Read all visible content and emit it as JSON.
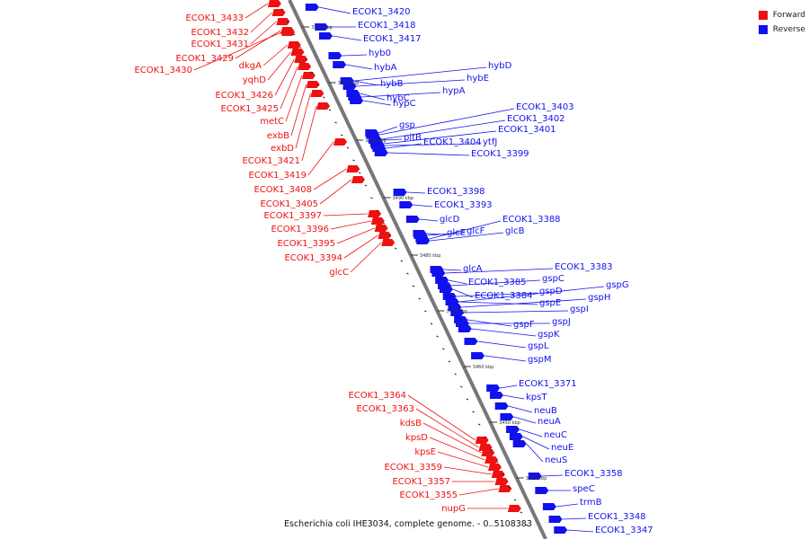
{
  "legend": {
    "forward_label": "Forward",
    "reverse_label": "Reverse",
    "forward_color": "#ee1111",
    "reverse_color": "#1111ee"
  },
  "caption": "Escherichia coli IHE3034, complete genome. - 0..5108383",
  "axis_ticks": [
    "3520 kbp",
    "3510 kbp",
    "3500 kbp",
    "3490 kbp",
    "3480 kbp",
    "3470 kbp",
    "3460 kbp",
    "3450 kbp",
    "3440 kbp"
  ],
  "reverse_genes": [
    "ECOK1_3420",
    "ECOK1_3418",
    "ECOK1_3417",
    "hyb0",
    "hybA",
    "hybB",
    "hybC",
    "hypC",
    "hypA",
    "hybE",
    "hybD",
    "gsp",
    "pitB",
    "ECOK1_3404",
    "ytfJ",
    "ECOK1_3403",
    "ECOK1_3402",
    "ECOK1_3401",
    "ECOK1_3399",
    "ECOK1_3398",
    "ECOK1_3393",
    "glcD",
    "glcE",
    "glcF",
    "glcB",
    "ECOK1_3388",
    "glcA",
    "ECOK1_3385",
    "ECOK1_3383",
    "gspC",
    "ECOK1_3384",
    "gspD",
    "gspG",
    "gspH",
    "gspE",
    "gspI",
    "gspF",
    "gspJ",
    "gspK",
    "gspL",
    "gspM",
    "ECOK1_3371",
    "kpsT",
    "neuB",
    "neuA",
    "neuC",
    "neuE",
    "neuS",
    "ECOK1_3358",
    "speC",
    "trmB",
    "ECOK1_3348",
    "ECOK1_3347"
  ],
  "forward_genes": [
    "ECOK1_3433",
    "ECOK1_3432",
    "ECOK1_3431",
    "ECOK1_3429",
    "ECOK1_3430",
    "dkgA",
    "yqhD",
    "ECOK1_3426",
    "ECOK1_3425",
    "metC",
    "exbB",
    "exbD",
    "ECOK1_3421",
    "ECOK1_3419",
    "ECOK1_3408",
    "ECOK1_3405",
    "ECOK1_3397",
    "ECOK1_3396",
    "ECOK1_3395",
    "ECOK1_3394",
    "glcC",
    "ECOK1_3364",
    "ECOK1_3363",
    "kdsB",
    "kpsD",
    "kpsE",
    "ECOK1_3359",
    "ECOK1_3357",
    "ECOK1_3355",
    "nupG"
  ]
}
